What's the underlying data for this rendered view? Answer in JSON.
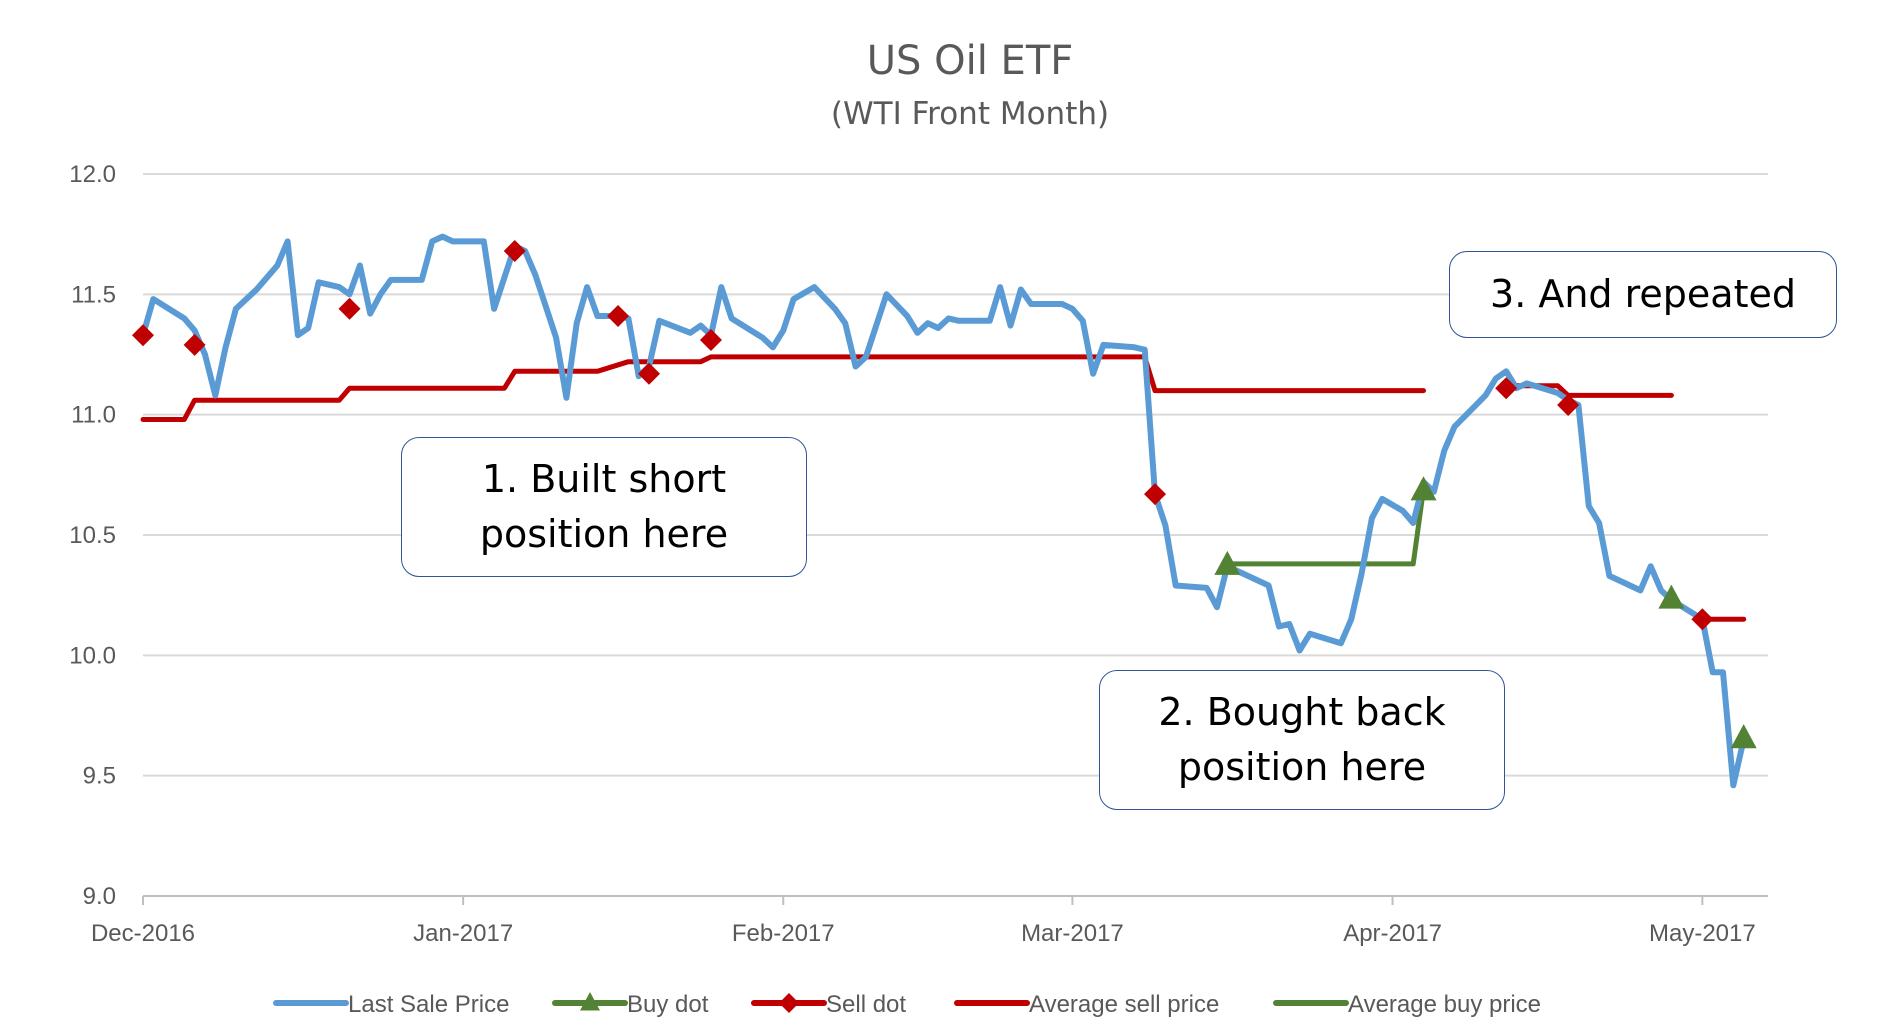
{
  "chart_data": {
    "type": "line",
    "title": "US Oil ETF",
    "subtitle": "(WTI Front Month)",
    "ylim": [
      9.0,
      12.0
    ],
    "y_ticks": [
      "12.0",
      "11.5",
      "11.0",
      "10.5",
      "10.0",
      "9.5",
      "9.0"
    ],
    "x_range": [
      "2016-12-01",
      "2017-05-06"
    ],
    "x_ticks": [
      {
        "label": "Dec-2016",
        "date": "2016-12-01"
      },
      {
        "label": "Jan-2017",
        "date": "2017-01-01"
      },
      {
        "label": "Feb-2017",
        "date": "2017-02-01"
      },
      {
        "label": "Mar-2017",
        "date": "2017-03-01"
      },
      {
        "label": "Apr-2017",
        "date": "2017-04-01"
      },
      {
        "label": "May-2017",
        "date": "2017-05-01"
      }
    ],
    "grid": "horizontal",
    "legend_position": "bottom",
    "colors": {
      "last_sale": "#5b9bd5",
      "sell": "#c00000",
      "buy": "#548235",
      "grid": "#d9d9d9",
      "axis": "#bfbfbf"
    },
    "series": [
      {
        "name": "Last Sale Price",
        "kind": "line",
        "color": "#5b9bd5",
        "points": [
          [
            "2016-12-01",
            11.33
          ],
          [
            "2016-12-02",
            11.48
          ],
          [
            "2016-12-05",
            11.4
          ],
          [
            "2016-12-06",
            11.35
          ],
          [
            "2016-12-07",
            11.25
          ],
          [
            "2016-12-08",
            11.08
          ],
          [
            "2016-12-09",
            11.28
          ],
          [
            "2016-12-10",
            11.44
          ],
          [
            "2016-12-12",
            11.52
          ],
          [
            "2016-12-14",
            11.62
          ],
          [
            "2016-12-15",
            11.72
          ],
          [
            "2016-12-16",
            11.33
          ],
          [
            "2016-12-17",
            11.36
          ],
          [
            "2016-12-18",
            11.55
          ],
          [
            "2016-12-20",
            11.53
          ],
          [
            "2016-12-21",
            11.5
          ],
          [
            "2016-12-22",
            11.62
          ],
          [
            "2016-12-23",
            11.42
          ],
          [
            "2016-12-24",
            11.5
          ],
          [
            "2016-12-25",
            11.56
          ],
          [
            "2016-12-27",
            11.56
          ],
          [
            "2016-12-28",
            11.56
          ],
          [
            "2016-12-29",
            11.72
          ],
          [
            "2016-12-30",
            11.74
          ],
          [
            "2016-12-31",
            11.72
          ],
          [
            "2017-01-03",
            11.72
          ],
          [
            "2017-01-04",
            11.44
          ],
          [
            "2017-01-05",
            11.57
          ],
          [
            "2017-01-06",
            11.7
          ],
          [
            "2017-01-07",
            11.68
          ],
          [
            "2017-01-08",
            11.58
          ],
          [
            "2017-01-09",
            11.45
          ],
          [
            "2017-01-10",
            11.32
          ],
          [
            "2017-01-11",
            11.07
          ],
          [
            "2017-01-12",
            11.38
          ],
          [
            "2017-01-13",
            11.53
          ],
          [
            "2017-01-14",
            11.41
          ],
          [
            "2017-01-16",
            11.41
          ],
          [
            "2017-01-17",
            11.4
          ],
          [
            "2017-01-18",
            11.16
          ],
          [
            "2017-01-19",
            11.2
          ],
          [
            "2017-01-20",
            11.39
          ],
          [
            "2017-01-23",
            11.34
          ],
          [
            "2017-01-24",
            11.37
          ],
          [
            "2017-01-25",
            11.33
          ],
          [
            "2017-01-26",
            11.53
          ],
          [
            "2017-01-27",
            11.4
          ],
          [
            "2017-01-30",
            11.32
          ],
          [
            "2017-01-31",
            11.28
          ],
          [
            "2017-02-01",
            11.35
          ],
          [
            "2017-02-02",
            11.48
          ],
          [
            "2017-02-04",
            11.53
          ],
          [
            "2017-02-06",
            11.44
          ],
          [
            "2017-02-07",
            11.38
          ],
          [
            "2017-02-08",
            11.2
          ],
          [
            "2017-02-09",
            11.24
          ],
          [
            "2017-02-11",
            11.5
          ],
          [
            "2017-02-13",
            11.41
          ],
          [
            "2017-02-14",
            11.34
          ],
          [
            "2017-02-15",
            11.38
          ],
          [
            "2017-02-16",
            11.36
          ],
          [
            "2017-02-17",
            11.4
          ],
          [
            "2017-02-18",
            11.39
          ],
          [
            "2017-02-21",
            11.39
          ],
          [
            "2017-02-22",
            11.53
          ],
          [
            "2017-02-23",
            11.37
          ],
          [
            "2017-02-24",
            11.52
          ],
          [
            "2017-02-25",
            11.46
          ],
          [
            "2017-02-28",
            11.46
          ],
          [
            "2017-03-01",
            11.44
          ],
          [
            "2017-03-02",
            11.39
          ],
          [
            "2017-03-03",
            11.17
          ],
          [
            "2017-03-04",
            11.29
          ],
          [
            "2017-03-07",
            11.28
          ],
          [
            "2017-03-08",
            11.27
          ],
          [
            "2017-03-09",
            10.67
          ],
          [
            "2017-03-10",
            10.54
          ],
          [
            "2017-03-11",
            10.29
          ],
          [
            "2017-03-14",
            10.28
          ],
          [
            "2017-03-15",
            10.2
          ],
          [
            "2017-03-16",
            10.37
          ],
          [
            "2017-03-17",
            10.35
          ],
          [
            "2017-03-20",
            10.29
          ],
          [
            "2017-03-21",
            10.12
          ],
          [
            "2017-03-22",
            10.13
          ],
          [
            "2017-03-23",
            10.02
          ],
          [
            "2017-03-24",
            10.09
          ],
          [
            "2017-03-27",
            10.05
          ],
          [
            "2017-03-28",
            10.15
          ],
          [
            "2017-03-29",
            10.34
          ],
          [
            "2017-03-30",
            10.57
          ],
          [
            "2017-03-31",
            10.65
          ],
          [
            "2017-04-02",
            10.6
          ],
          [
            "2017-04-03",
            10.55
          ],
          [
            "2017-04-04",
            10.72
          ],
          [
            "2017-04-05",
            10.68
          ],
          [
            "2017-04-06",
            10.85
          ],
          [
            "2017-04-07",
            10.95
          ],
          [
            "2017-04-10",
            11.08
          ],
          [
            "2017-04-11",
            11.15
          ],
          [
            "2017-04-12",
            11.18
          ],
          [
            "2017-04-13",
            11.11
          ],
          [
            "2017-04-14",
            11.13
          ],
          [
            "2017-04-17",
            11.09
          ],
          [
            "2017-04-18",
            11.06
          ],
          [
            "2017-04-19",
            11.04
          ],
          [
            "2017-04-20",
            10.62
          ],
          [
            "2017-04-21",
            10.55
          ],
          [
            "2017-04-22",
            10.33
          ],
          [
            "2017-04-25",
            10.27
          ],
          [
            "2017-04-26",
            10.37
          ],
          [
            "2017-04-27",
            10.27
          ],
          [
            "2017-04-28",
            10.23
          ],
          [
            "2017-05-01",
            10.15
          ],
          [
            "2017-05-02",
            9.93
          ],
          [
            "2017-05-03",
            9.93
          ],
          [
            "2017-05-04",
            9.46
          ],
          [
            "2017-05-05",
            9.65
          ]
        ]
      },
      {
        "name": "Buy dot",
        "kind": "marker",
        "marker": "triangle",
        "color": "#548235",
        "points": [
          [
            "2017-03-16",
            10.38
          ],
          [
            "2017-04-04",
            10.69
          ],
          [
            "2017-04-28",
            10.24
          ],
          [
            "2017-05-05",
            9.66
          ]
        ]
      },
      {
        "name": "Sell dot",
        "kind": "marker",
        "marker": "diamond",
        "color": "#c00000",
        "points": [
          [
            "2016-12-01",
            11.33
          ],
          [
            "2016-12-06",
            11.29
          ],
          [
            "2016-12-21",
            11.44
          ],
          [
            "2017-01-06",
            11.68
          ],
          [
            "2017-01-16",
            11.41
          ],
          [
            "2017-01-19",
            11.17
          ],
          [
            "2017-01-25",
            11.31
          ],
          [
            "2017-03-09",
            10.67
          ],
          [
            "2017-04-12",
            11.11
          ],
          [
            "2017-04-18",
            11.04
          ],
          [
            "2017-05-01",
            10.15
          ]
        ]
      },
      {
        "name": "Average sell price",
        "kind": "step",
        "color": "#c00000",
        "segments": [
          [
            [
              "2016-12-01",
              10.98
            ],
            [
              "2016-12-05",
              10.98
            ],
            [
              "2016-12-06",
              11.06
            ],
            [
              "2016-12-20",
              11.06
            ],
            [
              "2016-12-21",
              11.11
            ],
            [
              "2017-01-05",
              11.11
            ],
            [
              "2017-01-06",
              11.18
            ],
            [
              "2017-01-14",
              11.18
            ],
            [
              "2017-01-17",
              11.22
            ],
            [
              "2017-01-24",
              11.22
            ],
            [
              "2017-01-25",
              11.24
            ],
            [
              "2017-03-08",
              11.24
            ],
            [
              "2017-03-09",
              11.1
            ],
            [
              "2017-04-04",
              11.1
            ]
          ],
          [
            [
              "2017-04-12",
              11.12
            ],
            [
              "2017-04-17",
              11.12
            ],
            [
              "2017-04-18",
              11.08
            ],
            [
              "2017-04-28",
              11.08
            ]
          ],
          [
            [
              "2017-05-01",
              10.15
            ],
            [
              "2017-05-05",
              10.15
            ]
          ]
        ]
      },
      {
        "name": "Average buy price",
        "kind": "step",
        "color": "#548235",
        "segments": [
          [
            [
              "2017-03-16",
              10.38
            ],
            [
              "2017-04-03",
              10.38
            ],
            [
              "2017-04-04",
              10.69
            ]
          ]
        ]
      }
    ],
    "annotations": [
      {
        "text": "1. Built short position here",
        "lines": [
          "1. Built short",
          "position here"
        ]
      },
      {
        "text": "2. Bought back position here",
        "lines": [
          "2. Bought back",
          "position here"
        ]
      },
      {
        "text": "3. And repeated",
        "lines": [
          "3. And repeated"
        ]
      }
    ]
  }
}
